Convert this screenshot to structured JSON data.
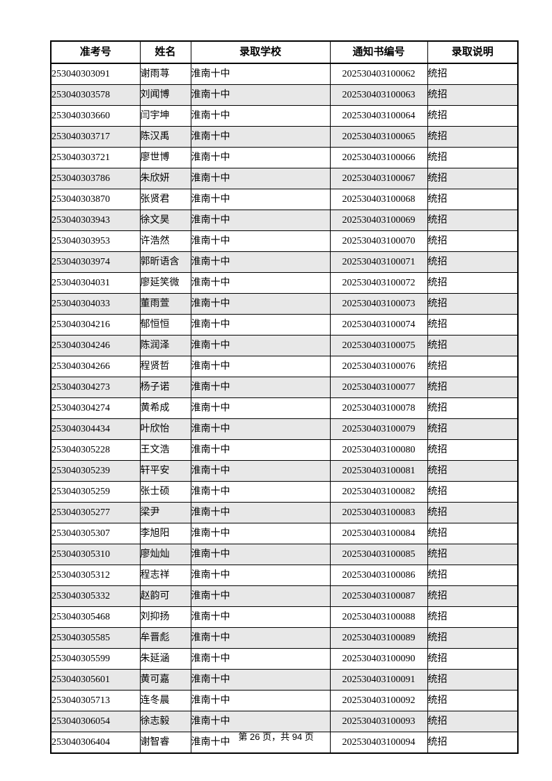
{
  "page": {
    "footer_text": "第 26 页，共 94 页"
  },
  "colors": {
    "row_alt_background": "#e8e8e8",
    "border": "#000000",
    "text": "#000000"
  },
  "table": {
    "columns": [
      "准考号",
      "姓名",
      "录取学校",
      "通知书编号",
      "录取说明"
    ],
    "rows": [
      {
        "exam_no": "253040303091",
        "name": "谢雨荨",
        "school": "淮南十中",
        "notice_no": "202530403100062",
        "note": "统招"
      },
      {
        "exam_no": "253040303578",
        "name": "刘闻博",
        "school": "淮南十中",
        "notice_no": "202530403100063",
        "note": "统招"
      },
      {
        "exam_no": "253040303660",
        "name": "闫宇坤",
        "school": "淮南十中",
        "notice_no": "202530403100064",
        "note": "统招"
      },
      {
        "exam_no": "253040303717",
        "name": "陈汉禹",
        "school": "淮南十中",
        "notice_no": "202530403100065",
        "note": "统招"
      },
      {
        "exam_no": "253040303721",
        "name": "廖世博",
        "school": "淮南十中",
        "notice_no": "202530403100066",
        "note": "统招"
      },
      {
        "exam_no": "253040303786",
        "name": "朱欣妍",
        "school": "淮南十中",
        "notice_no": "202530403100067",
        "note": "统招"
      },
      {
        "exam_no": "253040303870",
        "name": "张贤君",
        "school": "淮南十中",
        "notice_no": "202530403100068",
        "note": "统招"
      },
      {
        "exam_no": "253040303943",
        "name": "徐文昊",
        "school": "淮南十中",
        "notice_no": "202530403100069",
        "note": "统招"
      },
      {
        "exam_no": "253040303953",
        "name": "许浩然",
        "school": "淮南十中",
        "notice_no": "202530403100070",
        "note": "统招"
      },
      {
        "exam_no": "253040303974",
        "name": "郭昕语含",
        "school": "淮南十中",
        "notice_no": "202530403100071",
        "note": "统招"
      },
      {
        "exam_no": "253040304031",
        "name": "廖延笑微",
        "school": "淮南十中",
        "notice_no": "202530403100072",
        "note": "统招"
      },
      {
        "exam_no": "253040304033",
        "name": "董雨萱",
        "school": "淮南十中",
        "notice_no": "202530403100073",
        "note": "统招"
      },
      {
        "exam_no": "253040304216",
        "name": "郁恒恒",
        "school": "淮南十中",
        "notice_no": "202530403100074",
        "note": "统招"
      },
      {
        "exam_no": "253040304246",
        "name": "陈润泽",
        "school": "淮南十中",
        "notice_no": "202530403100075",
        "note": "统招"
      },
      {
        "exam_no": "253040304266",
        "name": "程贤哲",
        "school": "淮南十中",
        "notice_no": "202530403100076",
        "note": "统招"
      },
      {
        "exam_no": "253040304273",
        "name": "杨子诺",
        "school": "淮南十中",
        "notice_no": "202530403100077",
        "note": "统招"
      },
      {
        "exam_no": "253040304274",
        "name": "黄希成",
        "school": "淮南十中",
        "notice_no": "202530403100078",
        "note": "统招"
      },
      {
        "exam_no": "253040304434",
        "name": "叶欣怡",
        "school": "淮南十中",
        "notice_no": "202530403100079",
        "note": "统招"
      },
      {
        "exam_no": "253040305228",
        "name": "王文浩",
        "school": "淮南十中",
        "notice_no": "202530403100080",
        "note": "统招"
      },
      {
        "exam_no": "253040305239",
        "name": "轩平安",
        "school": "淮南十中",
        "notice_no": "202530403100081",
        "note": "统招"
      },
      {
        "exam_no": "253040305259",
        "name": "张士硕",
        "school": "淮南十中",
        "notice_no": "202530403100082",
        "note": "统招"
      },
      {
        "exam_no": "253040305277",
        "name": "梁尹",
        "school": "淮南十中",
        "notice_no": "202530403100083",
        "note": "统招"
      },
      {
        "exam_no": "253040305307",
        "name": "李旭阳",
        "school": "淮南十中",
        "notice_no": "202530403100084",
        "note": "统招"
      },
      {
        "exam_no": "253040305310",
        "name": "廖灿灿",
        "school": "淮南十中",
        "notice_no": "202530403100085",
        "note": "统招"
      },
      {
        "exam_no": "253040305312",
        "name": "程志祥",
        "school": "淮南十中",
        "notice_no": "202530403100086",
        "note": "统招"
      },
      {
        "exam_no": "253040305332",
        "name": "赵韵可",
        "school": "淮南十中",
        "notice_no": "202530403100087",
        "note": "统招"
      },
      {
        "exam_no": "253040305468",
        "name": "刘抑扬",
        "school": "淮南十中",
        "notice_no": "202530403100088",
        "note": "统招"
      },
      {
        "exam_no": "253040305585",
        "name": "牟晋彪",
        "school": "淮南十中",
        "notice_no": "202530403100089",
        "note": "统招"
      },
      {
        "exam_no": "253040305599",
        "name": "朱延涵",
        "school": "淮南十中",
        "notice_no": "202530403100090",
        "note": "统招"
      },
      {
        "exam_no": "253040305601",
        "name": "黄可嘉",
        "school": "淮南十中",
        "notice_no": "202530403100091",
        "note": "统招"
      },
      {
        "exam_no": "253040305713",
        "name": "连冬晨",
        "school": "淮南十中",
        "notice_no": "202530403100092",
        "note": "统招"
      },
      {
        "exam_no": "253040306054",
        "name": "徐志毅",
        "school": "淮南十中",
        "notice_no": "202530403100093",
        "note": "统招"
      },
      {
        "exam_no": "253040306404",
        "name": "谢智睿",
        "school": "淮南十中",
        "notice_no": "202530403100094",
        "note": "统招"
      }
    ]
  }
}
